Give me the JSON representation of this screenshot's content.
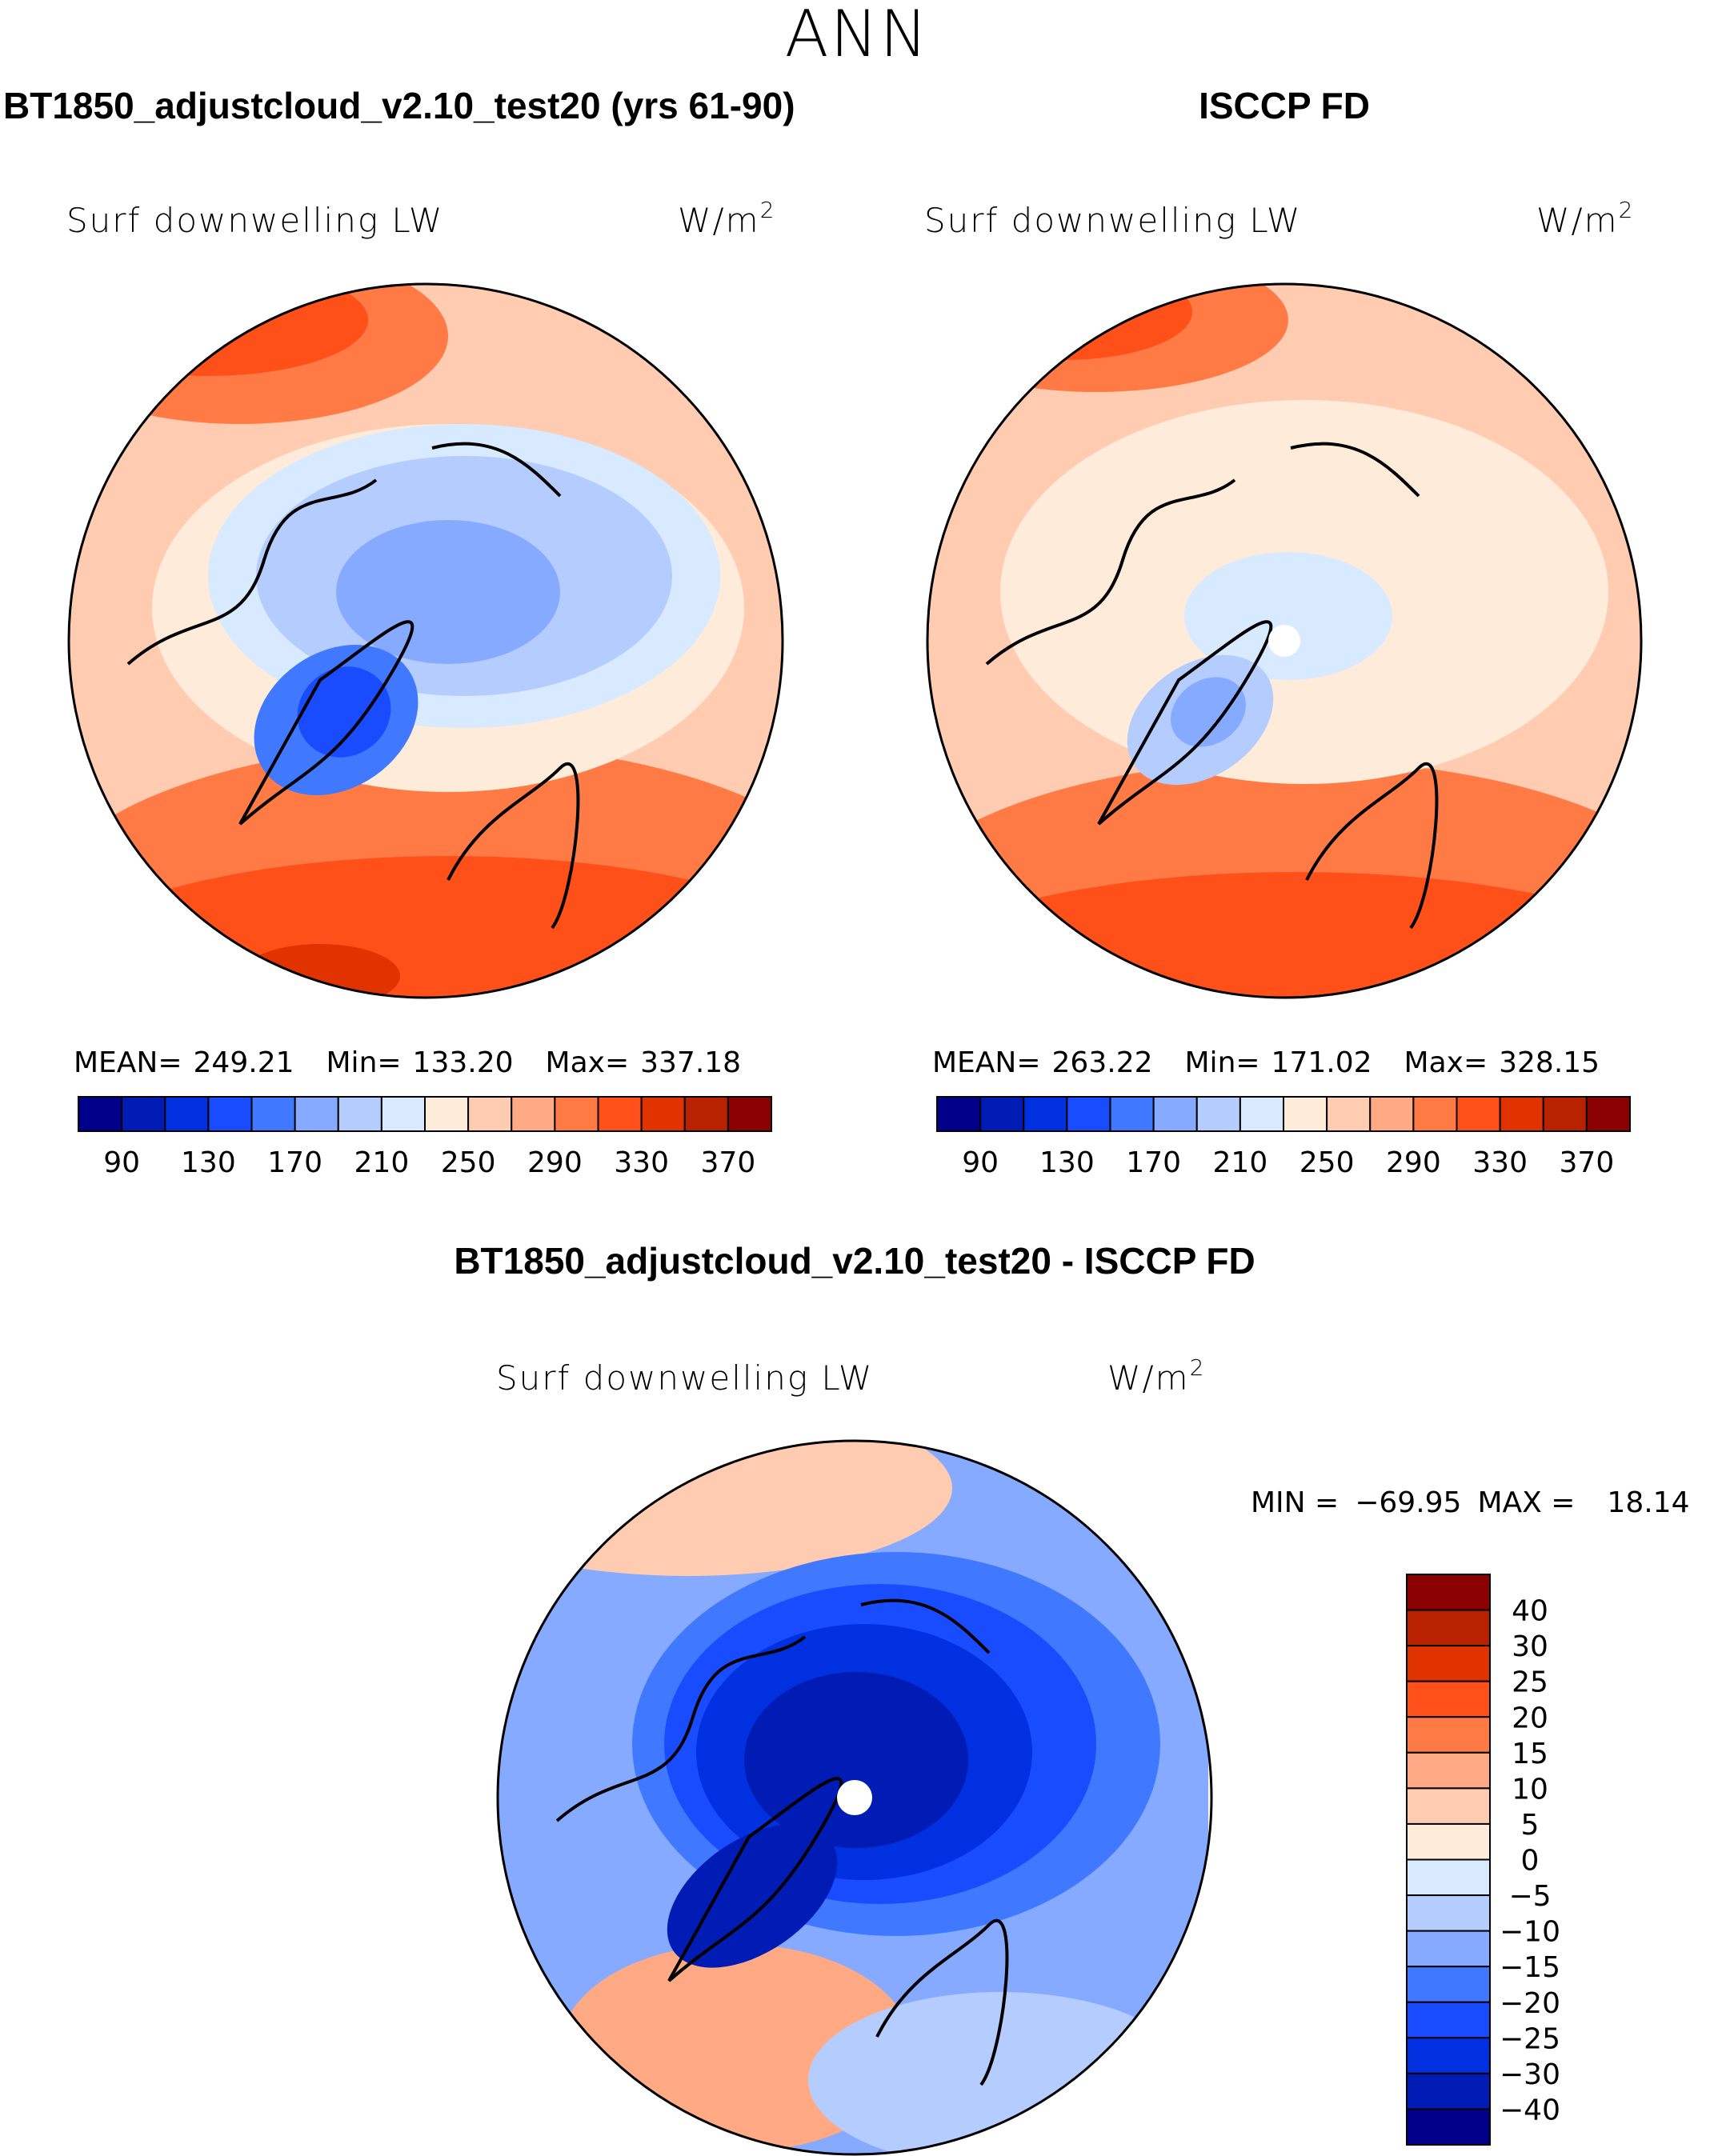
{
  "chart_data": [
    {
      "type": "heatmap",
      "projection": "north-polar-stereographic",
      "title": "BT1850_adjustcloud_v2.10_test20 (yrs 61-90)",
      "variable": "Surf downwelling LW",
      "units": "W/m",
      "units_exp": "2",
      "stats": {
        "mean_label": "MEAN=",
        "mean": "249.21",
        "min_label": "Min=",
        "min": "133.20",
        "max_label": "Max=",
        "max": "337.18"
      },
      "colorbar_ticks": [
        "90",
        "130",
        "170",
        "210",
        "250",
        "290",
        "330",
        "370"
      ]
    },
    {
      "type": "heatmap",
      "projection": "north-polar-stereographic",
      "title": "ISCCP FD",
      "variable": "Surf downwelling LW",
      "units": "W/m",
      "units_exp": "2",
      "stats": {
        "mean_label": "MEAN=",
        "mean": "263.22",
        "min_label": "Min=",
        "min": "171.02",
        "max_label": "Max=",
        "max": "328.15"
      },
      "colorbar_ticks": [
        "90",
        "130",
        "170",
        "210",
        "250",
        "290",
        "330",
        "370"
      ]
    },
    {
      "type": "heatmap",
      "projection": "north-polar-stereographic",
      "title": "BT1850_adjustcloud_v2.10_test20 - ISCCP FD",
      "variable": "Surf downwelling LW",
      "units": "W/m",
      "units_exp": "2",
      "stats": {
        "min_label": "MIN =",
        "min": "−69.95",
        "max_label": "MAX =",
        "max": "18.14"
      },
      "colorbar_ticks": [
        "40",
        "30",
        "25",
        "20",
        "15",
        "10",
        "5",
        "0",
        "−5",
        "−10",
        "−15",
        "−20",
        "−25",
        "−30",
        "−40"
      ]
    }
  ],
  "page_title": "ANN",
  "palette": [
    "#00008B",
    "#001CB4",
    "#0030E0",
    "#1A4CFF",
    "#4078FF",
    "#85AAFF",
    "#B5CCFF",
    "#D8EAFF",
    "#FFEBDA",
    "#FFCBB1",
    "#FFAA85",
    "#FF7A45",
    "#FF501A",
    "#E03300",
    "#B82200",
    "#8B0000"
  ]
}
